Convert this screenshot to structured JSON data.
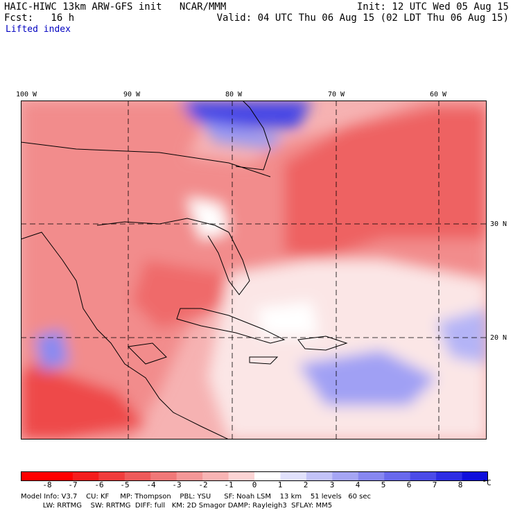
{
  "header": {
    "left_line1": "HAIC-HIWC 13km ARW-GFS init   NCAR/MMM",
    "left_line2": "Fcst:   16 h",
    "right_line1": "Init: 12 UTC Wed 05 Aug 15",
    "right_line2": "Valid: 04 UTC Thu 06 Aug 15 (02 LDT Thu 06 Aug 15)",
    "field_name": "Lifted index"
  },
  "map": {
    "lon_labels": [
      "100 W",
      "90 W",
      "80 W",
      "70 W",
      "60 W"
    ],
    "lat_labels": [
      "30 N",
      "20 N"
    ]
  },
  "colorbar": {
    "ticks": [
      "-8",
      "-7",
      "-6",
      "-5",
      "-4",
      "-3",
      "-2",
      "-1",
      "0",
      "1",
      "2",
      "3",
      "4",
      "5",
      "6",
      "7",
      "8"
    ],
    "unit": "°C",
    "colors": [
      "#ff0000",
      "#f51d1d",
      "#f03c3c",
      "#ee5a5a",
      "#f07878",
      "#f49797",
      "#f8b4b4",
      "#fcd4d4",
      "#ffffff",
      "#e1e1fc",
      "#c3c3f8",
      "#a5a5f4",
      "#8787f0",
      "#6969ec",
      "#4b4be8",
      "#2d2de4",
      "#0f0fdc"
    ]
  },
  "footer": {
    "line1": "Model Info: V3.7    CU: KF     MP: Thompson    PBL: YSU      SF: Noah LSM    13 km    51 levels   60 sec",
    "line2": "          LW: RRTMG    SW: RRTMG  DIFF: full   KM: 2D Smagor DAMP: Rayleigh3  SFLAY: MM5"
  }
}
